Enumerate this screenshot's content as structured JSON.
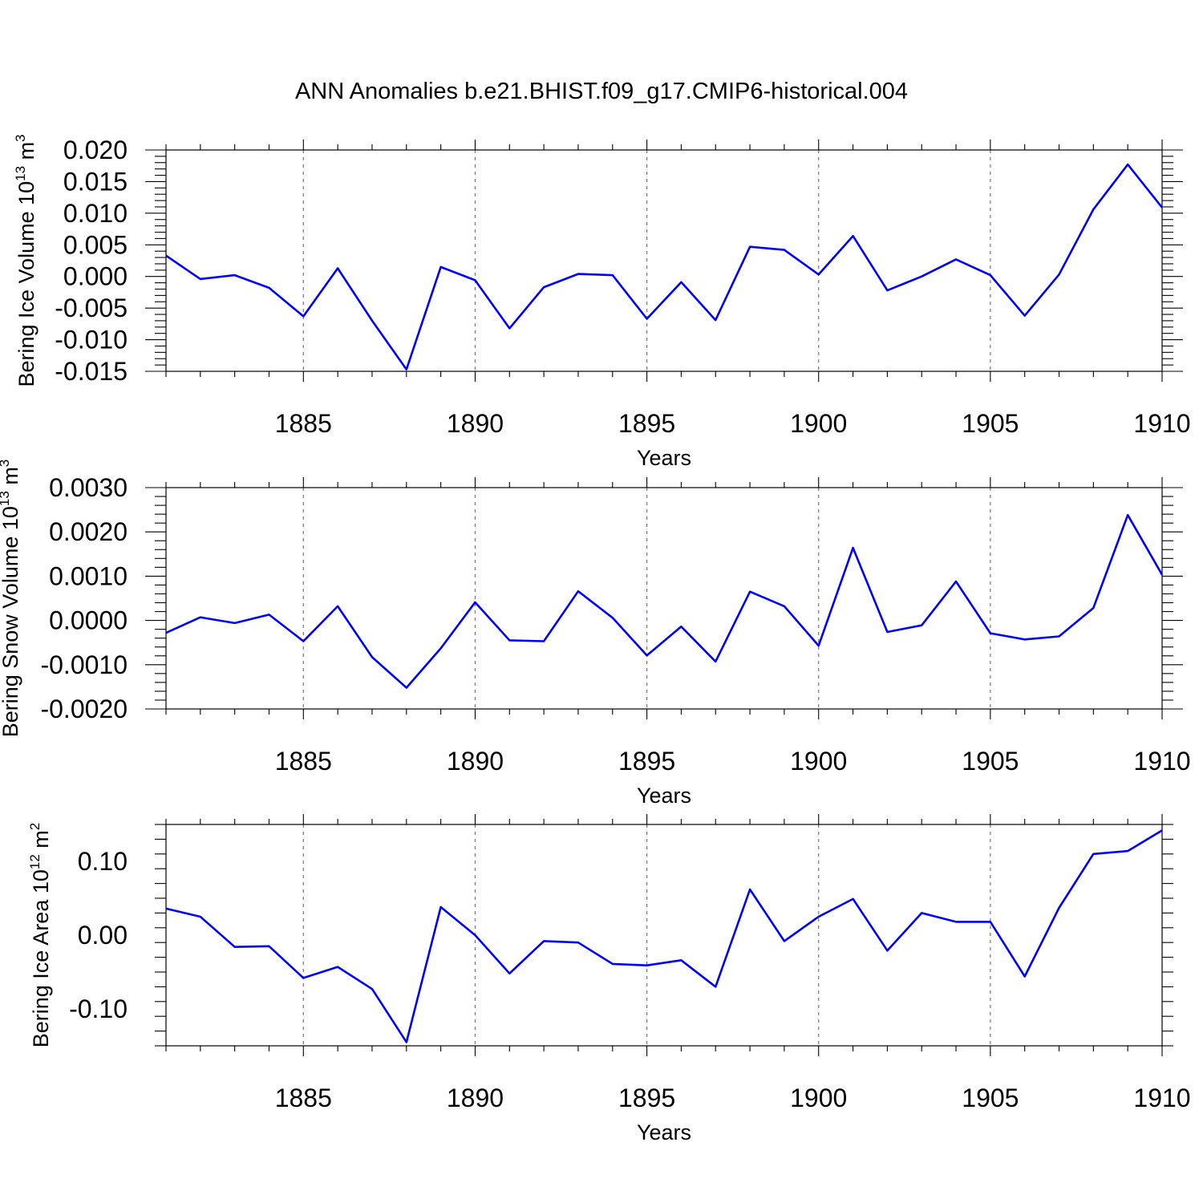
{
  "title": "ANN Anomalies b.e21.BHIST.f09_g17.CMIP6-historical.004",
  "chart_data": [
    {
      "type": "line",
      "ylabel": "Bering Ice Volume 10",
      "ylabel_exp": "13",
      "ylabel_unit": " m",
      "ylabel_unit_exp": "3",
      "xlabel": "Years",
      "xlim": [
        1881,
        1910
      ],
      "ylim": [
        -0.015,
        0.02
      ],
      "yticks": [
        -0.015,
        -0.01,
        -0.005,
        0.0,
        0.005,
        0.01,
        0.015,
        0.02
      ],
      "ytick_labels": [
        "-0.015",
        "-0.010",
        "-0.005",
        "0.000",
        "0.005",
        "0.010",
        "0.015",
        "0.020"
      ],
      "xticks": [
        1885,
        1890,
        1895,
        1900,
        1905,
        1910
      ],
      "xtick_labels": [
        "1885",
        "1890",
        "1895",
        "1900",
        "1905",
        "1910"
      ],
      "grid": "vertical dashed at major x ticks",
      "color": "#0000ff",
      "x": [
        1881,
        1882,
        1883,
        1884,
        1885,
        1886,
        1887,
        1888,
        1889,
        1890,
        1891,
        1892,
        1893,
        1894,
        1895,
        1896,
        1897,
        1898,
        1899,
        1900,
        1901,
        1902,
        1903,
        1904,
        1905,
        1906,
        1907,
        1908,
        1909,
        1910
      ],
      "y": [
        0.0033,
        -0.0004,
        0.0002,
        -0.0018,
        -0.0063,
        0.0013,
        -0.007,
        -0.0147,
        0.0015,
        -0.0006,
        -0.0082,
        -0.0017,
        0.0004,
        0.0002,
        -0.0067,
        -0.0009,
        -0.0069,
        0.0047,
        0.0042,
        0.0003,
        0.0064,
        -0.0022,
        -0.0,
        0.0027,
        0.0002,
        -0.0062,
        0.0003,
        0.0106,
        0.0177,
        0.0109
      ]
    },
    {
      "type": "line",
      "ylabel": "Bering Snow Volume 10",
      "ylabel_exp": "13",
      "ylabel_unit": " m",
      "ylabel_unit_exp": "3",
      "xlabel": "Years",
      "xlim": [
        1881,
        1910
      ],
      "ylim": [
        -0.002,
        0.003
      ],
      "yticks": [
        -0.002,
        -0.001,
        0.0,
        0.001,
        0.002,
        0.003
      ],
      "ytick_labels": [
        "-0.0020",
        "-0.0010",
        "0.0000",
        "0.0010",
        "0.0020",
        "0.0030"
      ],
      "xticks": [
        1885,
        1890,
        1895,
        1900,
        1905,
        1910
      ],
      "xtick_labels": [
        "1885",
        "1890",
        "1895",
        "1900",
        "1905",
        "1910"
      ],
      "grid": "vertical dashed at major x ticks",
      "color": "#0000ff",
      "x": [
        1881,
        1882,
        1883,
        1884,
        1885,
        1886,
        1887,
        1888,
        1889,
        1890,
        1891,
        1892,
        1893,
        1894,
        1895,
        1896,
        1897,
        1898,
        1899,
        1900,
        1901,
        1902,
        1903,
        1904,
        1905,
        1906,
        1907,
        1908,
        1909,
        1910
      ],
      "y": [
        -0.00028,
        7e-05,
        -6e-05,
        0.00013,
        -0.00047,
        0.00032,
        -0.00083,
        -0.00152,
        -0.00063,
        0.00041,
        -0.00045,
        -0.00047,
        0.00066,
        6e-05,
        -0.00079,
        -0.00014,
        -0.00093,
        0.00065,
        0.00032,
        -0.00057,
        0.00164,
        -0.00026,
        -0.00011,
        0.00088,
        -0.00029,
        -0.00043,
        -0.00036,
        0.00028,
        0.00238,
        0.00103
      ]
    },
    {
      "type": "line",
      "ylabel": "Bering Ice Area 10",
      "ylabel_exp": "12",
      "ylabel_unit": " m",
      "ylabel_unit_exp": "2",
      "xlabel": "Years",
      "xlim": [
        1881,
        1910
      ],
      "ylim": [
        -0.15,
        0.15
      ],
      "yticks": [
        -0.1,
        0.0,
        0.1
      ],
      "ytick_labels": [
        "-0.10",
        "0.00",
        "0.10"
      ],
      "xticks": [
        1885,
        1890,
        1895,
        1900,
        1905,
        1910
      ],
      "xtick_labels": [
        "1885",
        "1890",
        "1895",
        "1900",
        "1905",
        "1910"
      ],
      "grid": "vertical dashed at major x ticks",
      "color": "#0000ff",
      "x": [
        1881,
        1882,
        1883,
        1884,
        1885,
        1886,
        1887,
        1888,
        1889,
        1890,
        1891,
        1892,
        1893,
        1894,
        1895,
        1896,
        1897,
        1898,
        1899,
        1900,
        1901,
        1902,
        1903,
        1904,
        1905,
        1906,
        1907,
        1908,
        1909,
        1910
      ],
      "y": [
        0.036,
        0.025,
        -0.016,
        -0.015,
        -0.058,
        -0.043,
        -0.073,
        -0.145,
        0.038,
        0.0,
        -0.052,
        -0.008,
        -0.01,
        -0.039,
        -0.041,
        -0.034,
        -0.07,
        0.062,
        -0.008,
        0.025,
        0.049,
        -0.021,
        0.03,
        0.018,
        0.018,
        -0.056,
        0.037,
        0.11,
        0.114,
        0.142
      ]
    }
  ]
}
